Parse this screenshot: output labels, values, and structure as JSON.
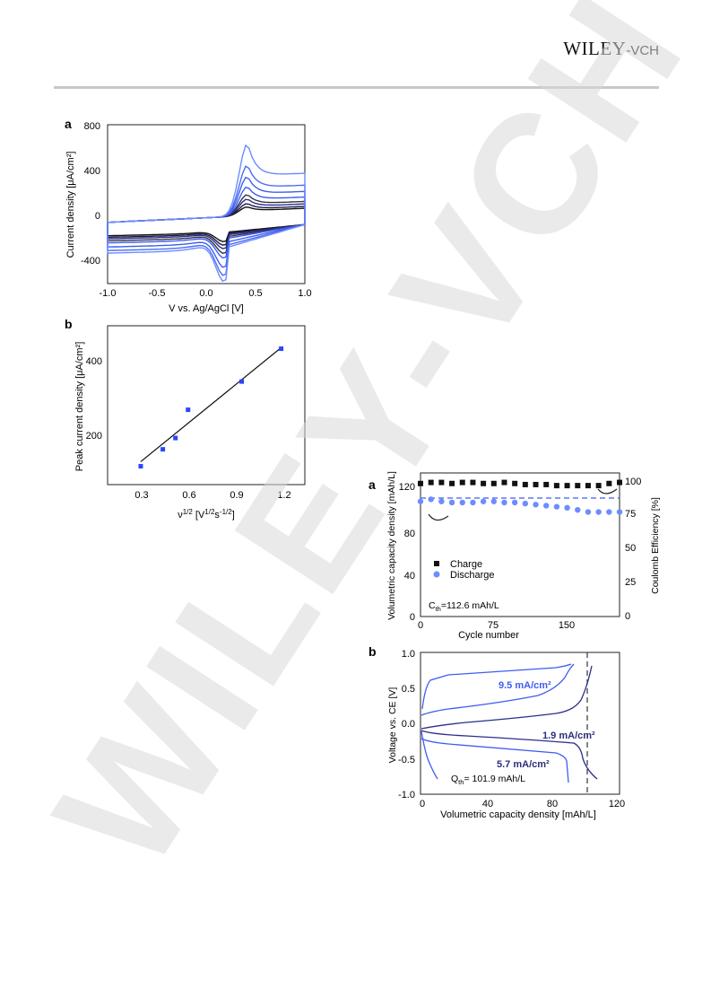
{
  "header": {
    "publisher_main": "WILEY",
    "publisher_suffix": "-VCH"
  },
  "watermark": {
    "text": "WILEY-VCH",
    "color": "#dcdcdc"
  },
  "colors": {
    "blue_light": "#6c8cff",
    "blue": "#3f5cf0",
    "blue_dark": "#2b2f8c",
    "black": "#111111",
    "navy": "#2c2f7a"
  },
  "fig1": {
    "panel_a": {
      "label": "a",
      "xlabel": "V vs. Ag/AgCl [V]",
      "ylabel": "Current density [μA/cm²]",
      "xticks": [
        "-1.0",
        "-0.5",
        "0.0",
        "0.5",
        "1.0"
      ],
      "yticks": [
        "800",
        "400",
        "0",
        "-400"
      ]
    },
    "panel_b": {
      "label": "b",
      "xlabel_main": "ν",
      "xlabel_sup": "1/2",
      "xlabel_rest": " [V",
      "xlabel_sup2": "1/2",
      "xlabel_s": "s",
      "xlabel_sup3": "-1/2",
      "xlabel_end": "]",
      "ylabel": "Peak current density [μA/cm²]",
      "xticks": [
        "0.3",
        "0.6",
        "0.9",
        "1.2"
      ],
      "yticks": [
        "400",
        "200"
      ]
    }
  },
  "fig2": {
    "panel_a": {
      "label": "a",
      "ylabel_left": "Volumetric capacity density [mAh/L]",
      "ylabel_right": "Coulomb Efficiency [%]",
      "xlabel": "Cycle number",
      "xticks": [
        "0",
        "75",
        "150"
      ],
      "yticks_left": [
        "120",
        "80",
        "40",
        "0"
      ],
      "yticks_right": [
        "100",
        "75",
        "50",
        "25",
        "0"
      ],
      "legend": [
        "Charge",
        "Discharge"
      ],
      "annotation_main": "C",
      "annotation_sub": "th",
      "annotation_rest": "=112.6 mAh/L"
    },
    "panel_b": {
      "label": "b",
      "ylabel": "Voltage vs. CE [V]",
      "xlabel": "Volumetric capacity density [mAh/L]",
      "xticks": [
        "0",
        "40",
        "80",
        "120"
      ],
      "yticks": [
        "1.0",
        "0.5",
        "0.0",
        "-0.5",
        "-1.0"
      ],
      "label_95": "9.5 mA/cm²",
      "label_19": "1.9 mA/cm²",
      "label_57": "5.7 mA/cm²",
      "annotation_main": "Q",
      "annotation_sub": "th",
      "annotation_rest": "= 101.9 mAh/L"
    }
  },
  "chart_data": [
    {
      "type": "line",
      "xlabel": "V vs. Ag/AgCl [V]",
      "ylabel": "Current density [μA/cm²]",
      "xlim": [
        -1.0,
        1.0
      ],
      "ylim": [
        -600,
        800
      ],
      "series": [
        {
          "anodic_peak": 80,
          "cathodic_peak": -130,
          "color": "#111111"
        },
        {
          "anodic_peak": 110,
          "cathodic_peak": -160,
          "color": "#1a1a4a"
        },
        {
          "anodic_peak": 150,
          "cathodic_peak": -190,
          "color": "#2b2f8c"
        },
        {
          "anodic_peak": 190,
          "cathodic_peak": -230,
          "color": "#334"
        },
        {
          "anodic_peak": 260,
          "cathodic_peak": -270,
          "color": "#3f5cf0"
        },
        {
          "anodic_peak": 350,
          "cathodic_peak": -350,
          "color": "#3f5cf0"
        },
        {
          "anodic_peak": 450,
          "cathodic_peak": -420,
          "color": "#4a6cf7"
        },
        {
          "anodic_peak": 640,
          "cathodic_peak": -470,
          "color": "#6c8cff"
        }
      ]
    },
    {
      "type": "scatter",
      "xlabel": "ν1/2 [V1/2s-1/2]",
      "ylabel": "Peak current density [μA/cm²]",
      "xlim": [
        0.15,
        1.4
      ],
      "ylim": [
        60,
        510
      ],
      "points": [
        {
          "x": 0.36,
          "y": 112
        },
        {
          "x": 0.5,
          "y": 160
        },
        {
          "x": 0.58,
          "y": 192
        },
        {
          "x": 0.66,
          "y": 272
        },
        {
          "x": 1.0,
          "y": 352
        },
        {
          "x": 1.25,
          "y": 445
        }
      ],
      "fit": {
        "x": [
          0.36,
          1.25
        ],
        "y": [
          125,
          448
        ]
      }
    },
    {
      "type": "scatter",
      "xlabel": "Cycle number",
      "ylabel": "Volumetric capacity density [mAh/L]",
      "y2label": "Coulomb Efficiency [%]",
      "xlim": [
        0,
        190
      ],
      "ylim": [
        0,
        136
      ],
      "y2lim": [
        0,
        108
      ],
      "series": [
        {
          "name": "Charge",
          "x": [
            0,
            10,
            20,
            30,
            40,
            50,
            60,
            70,
            80,
            90,
            100,
            110,
            120,
            130,
            140,
            150,
            160,
            170,
            180,
            190
          ],
          "y": [
            126,
            127,
            127,
            126,
            127,
            127,
            126,
            126,
            127,
            126,
            125,
            125,
            125,
            124,
            124,
            124,
            124,
            124,
            126,
            127
          ]
        },
        {
          "name": "Discharge",
          "x": [
            0,
            10,
            20,
            30,
            40,
            50,
            60,
            70,
            80,
            90,
            100,
            110,
            120,
            130,
            140,
            150,
            160,
            170,
            180,
            190
          ],
          "y": [
            109,
            111,
            109,
            108,
            108,
            108,
            109,
            109,
            108,
            108,
            107,
            106,
            105,
            104,
            103,
            101,
            99,
            99,
            99,
            99
          ]
        }
      ],
      "efficiency_line": 87
    },
    {
      "type": "line",
      "xlabel": "Volumetric capacity density [mAh/L]",
      "ylabel": "Voltage vs. CE [V]",
      "xlim": [
        0,
        130
      ],
      "ylim": [
        -1.0,
        1.0
      ],
      "vline": 101.9
    }
  ]
}
